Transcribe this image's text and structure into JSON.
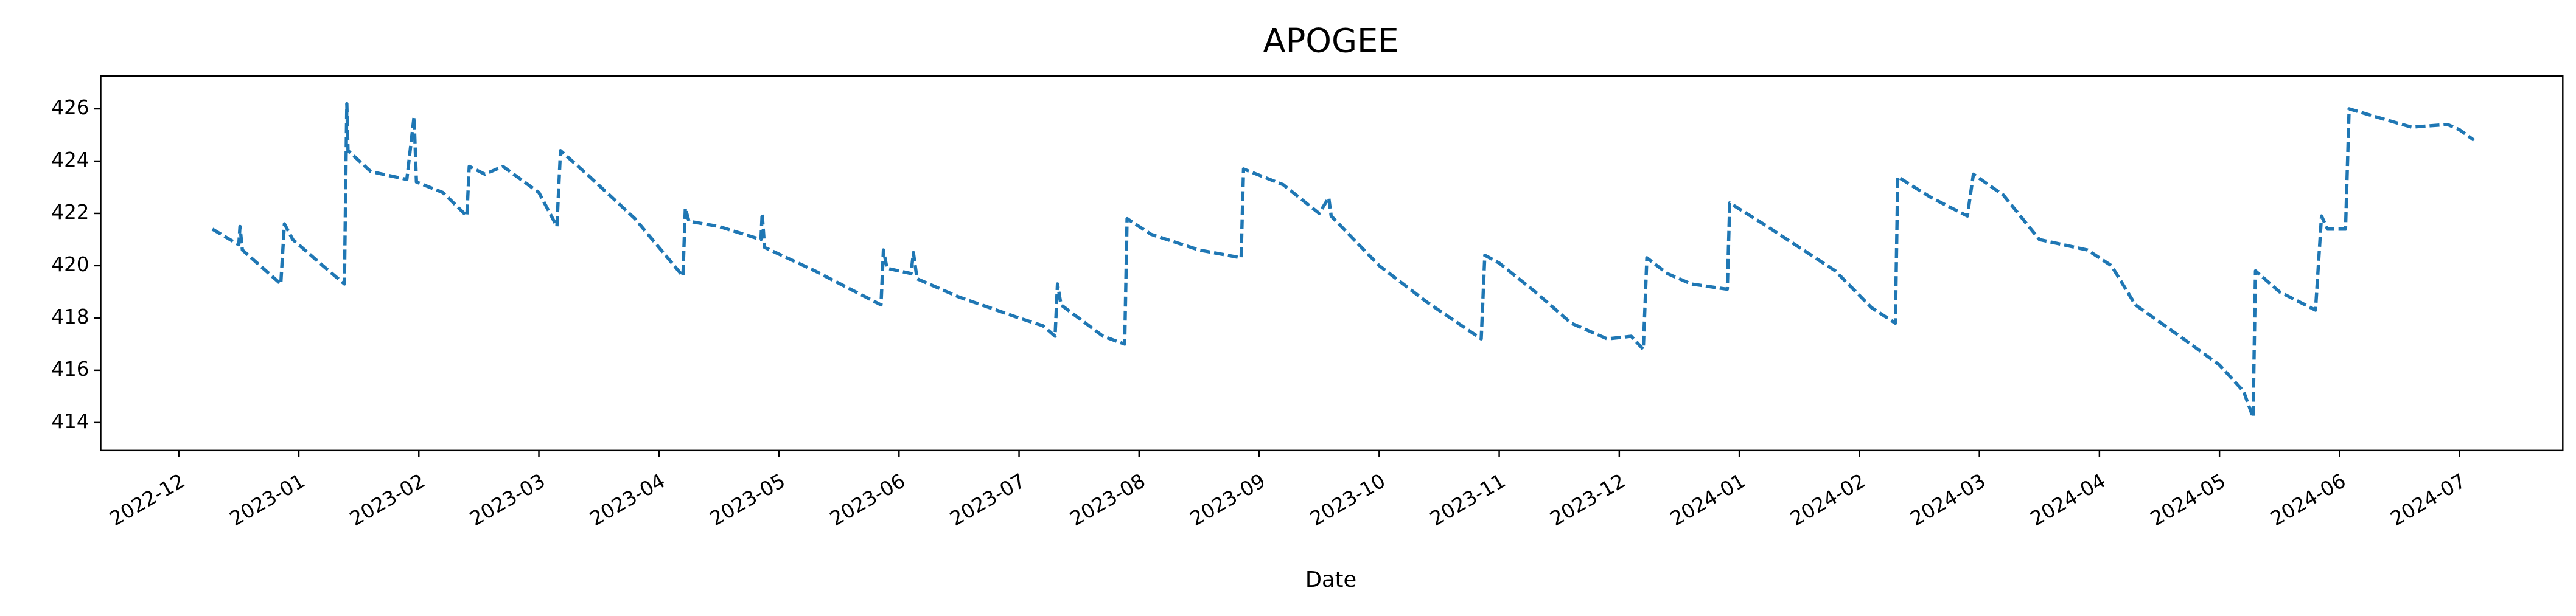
{
  "chart_data": {
    "type": "line",
    "title": "APOGEE",
    "x_label": "Date",
    "xlim": [
      -0.65,
      19.86
    ],
    "ylim": [
      412.93,
      427.26
    ],
    "xticks": [
      {
        "value": 0,
        "label": "2022-12"
      },
      {
        "value": 1,
        "label": "2023-01"
      },
      {
        "value": 2,
        "label": "2023-02"
      },
      {
        "value": 3,
        "label": "2023-03"
      },
      {
        "value": 4,
        "label": "2023-04"
      },
      {
        "value": 5,
        "label": "2023-05"
      },
      {
        "value": 6,
        "label": "2023-06"
      },
      {
        "value": 7,
        "label": "2023-07"
      },
      {
        "value": 8,
        "label": "2023-08"
      },
      {
        "value": 9,
        "label": "2023-09"
      },
      {
        "value": 10,
        "label": "2023-10"
      },
      {
        "value": 11,
        "label": "2023-11"
      },
      {
        "value": 12,
        "label": "2023-12"
      },
      {
        "value": 13,
        "label": "2024-01"
      },
      {
        "value": 14,
        "label": "2024-02"
      },
      {
        "value": 15,
        "label": "2024-03"
      },
      {
        "value": 16,
        "label": "2024-04"
      },
      {
        "value": 17,
        "label": "2024-05"
      },
      {
        "value": 18,
        "label": "2024-06"
      },
      {
        "value": 19,
        "label": "2024-07"
      }
    ],
    "yticks": [
      414,
      416,
      418,
      420,
      422,
      424,
      426
    ],
    "grid": false,
    "series": [
      {
        "color": "#1f77b4",
        "x": [
          0.28,
          0.5,
          0.51,
          0.53,
          0.85,
          0.88,
          0.95,
          1.2,
          1.38,
          1.4,
          1.41,
          1.6,
          1.9,
          1.96,
          1.98,
          2.2,
          2.4,
          2.42,
          2.55,
          2.7,
          3.0,
          3.15,
          3.18,
          3.4,
          3.8,
          4.2,
          4.22,
          4.25,
          4.5,
          4.85,
          4.86,
          4.88,
          5.3,
          5.85,
          5.87,
          5.9,
          6.1,
          6.12,
          6.15,
          6.5,
          7.0,
          7.2,
          7.3,
          7.32,
          7.35,
          7.7,
          7.88,
          7.9,
          8.1,
          8.5,
          8.85,
          8.87,
          9.2,
          9.5,
          9.58,
          9.6,
          10.0,
          10.4,
          10.85,
          10.88,
          11.0,
          11.3,
          11.6,
          11.9,
          12.1,
          12.2,
          12.23,
          12.4,
          12.6,
          12.9,
          12.92,
          13.2,
          13.5,
          13.8,
          14.1,
          14.3,
          14.32,
          14.6,
          14.9,
          14.95,
          15.2,
          15.5,
          15.9,
          16.1,
          16.3,
          16.7,
          17.0,
          17.2,
          17.28,
          17.3,
          17.5,
          17.8,
          17.85,
          17.9,
          18.05,
          18.08,
          18.3,
          18.6,
          18.9,
          19.0,
          19.12
        ],
        "values": [
          421.4,
          420.8,
          421.5,
          420.6,
          419.3,
          421.6,
          421.0,
          420.0,
          419.3,
          426.2,
          424.4,
          423.6,
          423.3,
          425.7,
          423.2,
          422.8,
          421.9,
          423.8,
          423.5,
          423.8,
          422.8,
          421.5,
          424.4,
          423.5,
          421.8,
          419.6,
          422.2,
          421.7,
          421.5,
          421.0,
          422.0,
          420.7,
          419.8,
          418.5,
          420.6,
          419.9,
          419.7,
          420.5,
          419.5,
          418.8,
          418.0,
          417.7,
          417.3,
          419.3,
          418.5,
          417.3,
          417.0,
          421.8,
          421.2,
          420.6,
          420.3,
          423.7,
          423.1,
          422.0,
          422.6,
          421.9,
          420.0,
          418.6,
          417.2,
          420.4,
          420.1,
          419.0,
          417.8,
          417.2,
          417.3,
          416.8,
          420.3,
          419.7,
          419.3,
          419.1,
          422.4,
          421.6,
          420.7,
          419.8,
          418.4,
          417.8,
          423.4,
          422.6,
          421.9,
          423.5,
          422.7,
          421.0,
          420.6,
          420.0,
          418.5,
          417.2,
          416.2,
          415.2,
          414.2,
          419.8,
          419.0,
          418.3,
          421.9,
          421.4,
          421.4,
          426.0,
          425.7,
          425.3,
          425.4,
          425.2,
          424.8
        ]
      }
    ]
  }
}
